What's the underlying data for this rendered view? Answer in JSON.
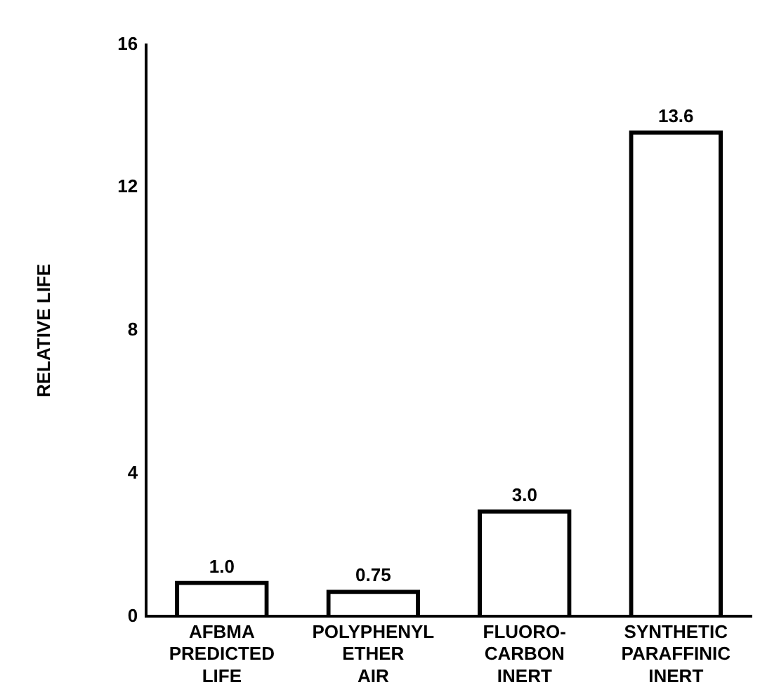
{
  "chart_data": {
    "type": "bar",
    "ylabel": "RELATIVE LIFE",
    "categories": [
      "AFBMA\nPREDICTED\nLIFE",
      "POLYPHENYL\nETHER\nAIR",
      "FLUORO-\nCARBON\nINERT",
      "SYNTHETIC\nPARAFFINIC\nINERT"
    ],
    "values": [
      1.0,
      0.75,
      3.0,
      13.6
    ],
    "value_labels": [
      "1.0",
      "0.75",
      "3.0",
      "13.6"
    ],
    "color": "#000000",
    "ylim": [
      0,
      16
    ],
    "yticks": [
      0,
      4,
      8,
      12,
      16
    ],
    "grid": false,
    "legend": false
  }
}
